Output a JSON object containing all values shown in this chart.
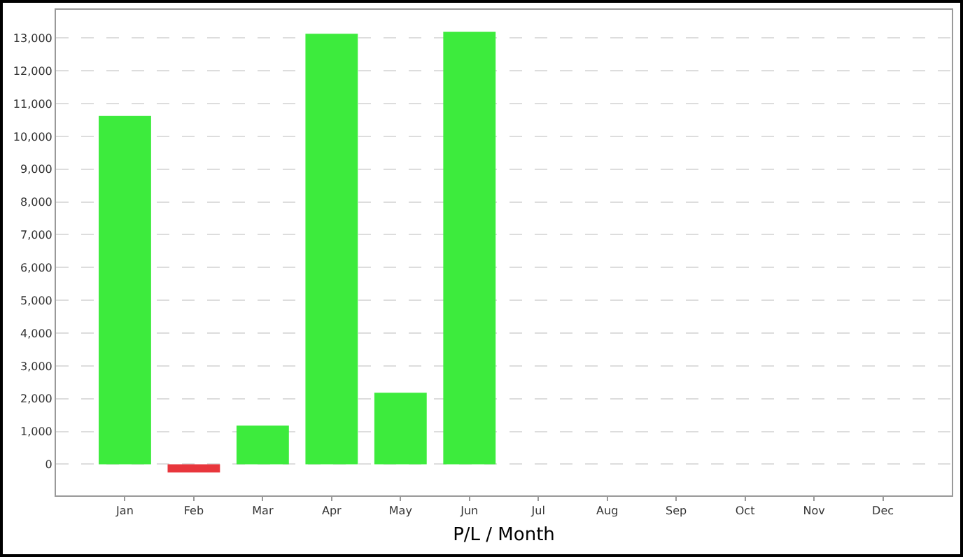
{
  "chart_data": {
    "type": "bar",
    "xlabel": "P/L / Month",
    "categories": [
      "Jan",
      "Feb",
      "Mar",
      "Apr",
      "May",
      "Jun",
      "Jul",
      "Aug",
      "Sep",
      "Oct",
      "Nov",
      "Dec"
    ],
    "values": [
      10620,
      -250,
      1180,
      13130,
      2180,
      13190,
      null,
      null,
      null,
      null,
      null,
      null
    ],
    "colors": [
      "#3deb3d",
      "#e8363c",
      "#3deb3d",
      "#3deb3d",
      "#3deb3d",
      "#3deb3d",
      "#3deb3d",
      "#3deb3d",
      "#3deb3d",
      "#3deb3d",
      "#3deb3d",
      "#3deb3d"
    ],
    "ylim": [
      -950,
      13860
    ],
    "yticks": [
      0,
      {
        "value": 1000,
        "label": "1,000"
      },
      {
        "value": 2000,
        "label": "2,000"
      },
      {
        "value": 3000,
        "label": "3,000"
      },
      {
        "value": 4000,
        "label": "4,000"
      },
      {
        "value": 5000,
        "label": "5,000"
      },
      {
        "value": 6000,
        "label": "6,000"
      },
      {
        "value": 7000,
        "label": "7,000"
      },
      {
        "value": 8000,
        "label": "8,000"
      },
      {
        "value": 9000,
        "label": "9,000"
      },
      {
        "value": 10000,
        "label": "10,000"
      },
      {
        "value": 11000,
        "label": "11,000"
      },
      {
        "value": 12000,
        "label": "12,000"
      },
      {
        "value": 13000,
        "label": "13,000"
      }
    ],
    "grid": "y"
  }
}
